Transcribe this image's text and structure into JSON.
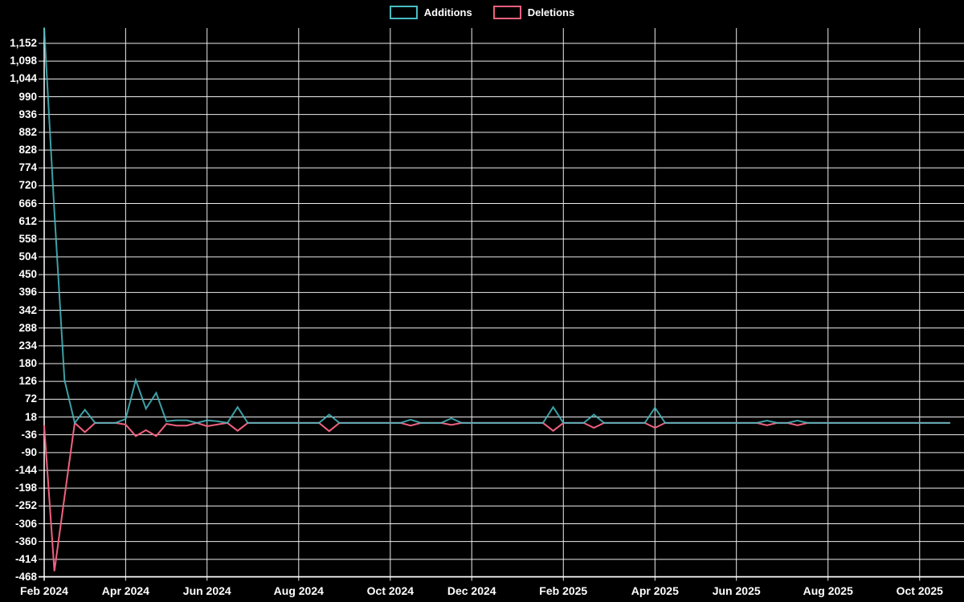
{
  "legend": {
    "items": [
      {
        "label": "Additions",
        "color": "#47bcc2"
      },
      {
        "label": "Deletions",
        "color": "#f0617e"
      }
    ]
  },
  "chart_data": {
    "type": "line",
    "title": "",
    "background": "#000000",
    "grid": true,
    "legend_position": "top-center",
    "text_color": "#ffffff",
    "gridline_color": "#ededed",
    "x_axis": {
      "unit": "week",
      "tick_labels": [
        "Feb 2024",
        "Apr 2024",
        "Jun 2024",
        "Aug 2024",
        "Oct 2024",
        "Dec 2024",
        "Feb 2025",
        "Apr 2025",
        "Jun 2025",
        "Aug 2025",
        "Oct 2025"
      ],
      "tick_weeks": [
        0,
        8,
        16,
        25,
        34,
        42,
        51,
        60,
        68,
        77,
        86
      ],
      "total_weeks": 90
    },
    "y_axis": {
      "tick_labels": [
        "1,152",
        "1,098",
        "1,044",
        "990",
        "936",
        "882",
        "828",
        "774",
        "720",
        "666",
        "612",
        "558",
        "504",
        "450",
        "396",
        "342",
        "288",
        "234",
        "180",
        "126",
        "72",
        "18",
        "-36",
        "-90",
        "-144",
        "-198",
        "-252",
        "-306",
        "-360",
        "-414",
        "-468"
      ],
      "tick_values": [
        1152,
        1098,
        1044,
        990,
        936,
        882,
        828,
        774,
        720,
        666,
        612,
        558,
        504,
        450,
        396,
        342,
        288,
        234,
        180,
        126,
        72,
        18,
        -36,
        -90,
        -144,
        -198,
        -252,
        -306,
        -360,
        -414,
        -468
      ],
      "step": 54,
      "min": -468,
      "max_gridline": 1152
    },
    "series": [
      {
        "name": "Additions",
        "color": "#47bcc2",
        "values": [
          1200,
          640,
          130,
          0,
          40,
          0,
          0,
          0,
          12,
          130,
          43,
          91,
          5,
          8,
          8,
          0,
          8,
          5,
          0,
          48,
          0,
          0,
          0,
          0,
          0,
          0,
          0,
          0,
          25,
          0,
          0,
          0,
          0,
          0,
          0,
          0,
          10,
          0,
          0,
          0,
          14,
          0,
          0,
          0,
          0,
          0,
          0,
          0,
          0,
          0,
          48,
          0,
          0,
          0,
          25,
          0,
          0,
          0,
          0,
          0,
          46,
          0,
          0,
          0,
          0,
          0,
          0,
          0,
          0,
          0,
          0,
          7,
          0,
          0,
          7,
          0,
          0,
          0,
          0,
          0,
          0,
          0,
          0,
          0,
          0,
          0,
          0,
          0,
          0,
          0
        ]
      },
      {
        "name": "Deletions",
        "color": "#f0617e",
        "values": [
          -7,
          -450,
          -225,
          0,
          -28,
          0,
          0,
          0,
          -5,
          -40,
          -22,
          -40,
          -3,
          -8,
          -8,
          0,
          -10,
          -5,
          0,
          -24,
          0,
          0,
          0,
          0,
          0,
          0,
          0,
          0,
          -25,
          0,
          0,
          0,
          0,
          0,
          0,
          0,
          -8,
          0,
          0,
          0,
          -6,
          0,
          0,
          0,
          0,
          0,
          0,
          0,
          0,
          0,
          -24,
          0,
          0,
          0,
          -15,
          0,
          0,
          0,
          0,
          0,
          -15,
          0,
          0,
          0,
          0,
          0,
          0,
          0,
          0,
          0,
          0,
          -7,
          0,
          0,
          -7,
          0,
          0,
          0,
          0,
          0,
          0,
          0,
          0,
          0,
          0,
          0,
          0,
          0,
          0,
          0
        ]
      }
    ]
  }
}
